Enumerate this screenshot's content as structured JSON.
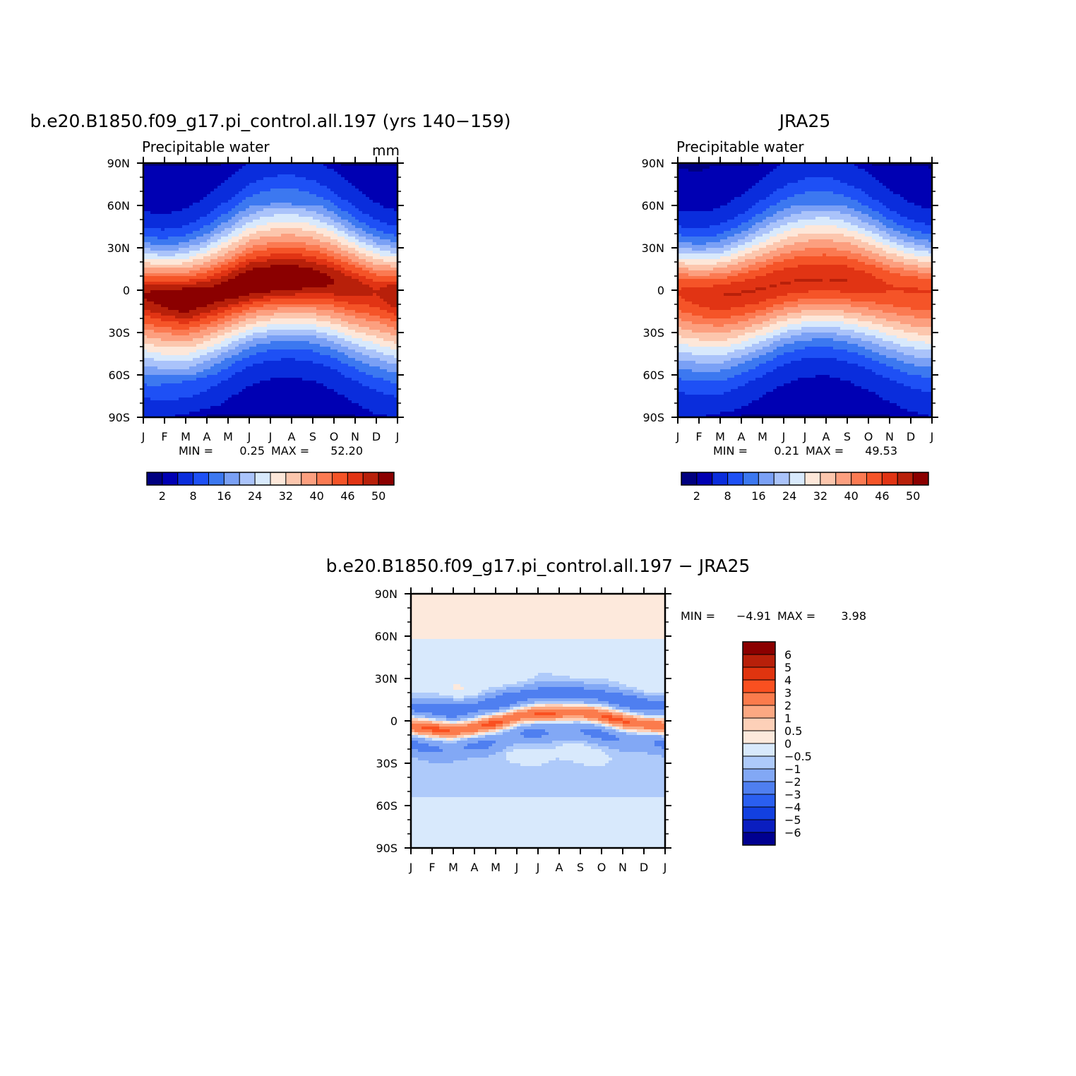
{
  "page": {
    "panel_title_model": "b.e20.B1850.f09_g17.pi_control.all.197 (yrs 140−159)",
    "panel_title_obs": "JRA25",
    "panel_title_diff": "b.e20.B1850.f09_g17.pi_control.all.197 − JRA25"
  },
  "colors": {
    "abs_scale": [
      "#000080",
      "#0000b3",
      "#0a2ddc",
      "#1e50f5",
      "#3c78f0",
      "#7aa0f5",
      "#aac3fa",
      "#d8e9fc",
      "#fde7d9",
      "#fcc6ad",
      "#fc9f7f",
      "#fb7a52",
      "#f55428",
      "#e13414",
      "#b8200a",
      "#8b0000"
    ],
    "diff_scale": [
      "#8b0000",
      "#b8200a",
      "#e0340f",
      "#fa5020",
      "#fb7b4c",
      "#fca882",
      "#fdd0b8",
      "#fde9dc",
      "#d8e9fc",
      "#aecafa",
      "#82a8f5",
      "#4f7ff0",
      "#2a5ff0",
      "#1240e0",
      "#0a1ec0",
      "#000090"
    ]
  },
  "chart_data": [
    {
      "type": "heatmap",
      "title": "b.e20.B1850.f09_g17.pi_control.all.197 (yrs 140−159)",
      "subtitle": "Precipitable water",
      "units": "mm",
      "x": [
        "J",
        "F",
        "M",
        "A",
        "M",
        "J",
        "J",
        "A",
        "S",
        "O",
        "N",
        "D",
        "J"
      ],
      "y_ticks": [
        "90N",
        "60N",
        "30N",
        "0",
        "30S",
        "60S",
        "90S"
      ],
      "ylim": [
        -90,
        90
      ],
      "stats": {
        "min_label": "MIN =",
        "min": "0.25",
        "max_label": "MAX =",
        "max": "52.20"
      },
      "colorbar_labels": [
        "2",
        "8",
        "16",
        "24",
        "32",
        "40",
        "46",
        "50"
      ],
      "itcz_lat_by_month": [
        -3,
        -5,
        -6,
        -4,
        0,
        5,
        7,
        8,
        8,
        6,
        2,
        -1,
        -3
      ],
      "peak_value_by_month": [
        50,
        51,
        52,
        51,
        51,
        52,
        52,
        52,
        51,
        50,
        49,
        48,
        50
      ]
    },
    {
      "type": "heatmap",
      "title": "JRA25",
      "subtitle": "Precipitable water",
      "x": [
        "J",
        "F",
        "M",
        "A",
        "M",
        "J",
        "J",
        "A",
        "S",
        "O",
        "N",
        "D",
        "J"
      ],
      "y_ticks": [
        "90N",
        "60N",
        "30N",
        "0",
        "30S",
        "60S",
        "90S"
      ],
      "ylim": [
        -90,
        90
      ],
      "stats": {
        "min_label": "MIN =",
        "min": "0.21",
        "max_label": "MAX =",
        "max": "49.53"
      },
      "colorbar_labels": [
        "2",
        "8",
        "16",
        "24",
        "32",
        "40",
        "46",
        "50"
      ],
      "itcz_lat_by_month": [
        -1,
        -3,
        -4,
        -2,
        1,
        5,
        7,
        8,
        7,
        5,
        2,
        0,
        -1
      ],
      "peak_value_by_month": [
        47,
        48,
        49,
        49,
        49,
        49,
        49,
        49,
        49,
        48,
        47,
        47,
        47
      ]
    },
    {
      "type": "heatmap",
      "title": "b.e20.B1850.f09_g17.pi_control.all.197 − JRA25",
      "x": [
        "J",
        "F",
        "M",
        "A",
        "M",
        "J",
        "J",
        "A",
        "S",
        "O",
        "N",
        "D",
        "J"
      ],
      "y_ticks": [
        "90N",
        "60N",
        "30N",
        "0",
        "30S",
        "60S",
        "90S"
      ],
      "ylim": [
        -90,
        90
      ],
      "stats": {
        "min_label": "MIN =",
        "min": "−4.91",
        "max_label": "MAX =",
        "max": "3.98"
      },
      "colorbar_labels": [
        "6",
        "5",
        "4",
        "3",
        "2",
        "1",
        "0.5",
        "0",
        "−0.5",
        "−1",
        "−2",
        "−3",
        "−4",
        "−5",
        "−6"
      ]
    }
  ]
}
